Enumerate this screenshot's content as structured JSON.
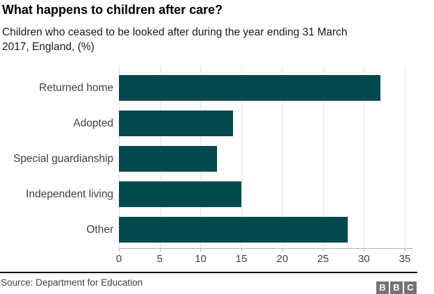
{
  "header": {
    "title": "What happens to children after care?",
    "subtitle_line1": "Children who ceased to be looked after during the year ending 31 March",
    "subtitle_line2": "2017, England, (%)"
  },
  "chart_data": {
    "type": "bar",
    "orientation": "horizontal",
    "title": "What happens to children after care?",
    "subtitle": "Children who ceased to be looked after during the year ending 31 March 2017, England, (%)",
    "categories": [
      "Returned home",
      "Adopted",
      "Special guardianship",
      "Independent living",
      "Other"
    ],
    "values": [
      32,
      14,
      12,
      15,
      28
    ],
    "unit": "%",
    "xlim": [
      0,
      35
    ],
    "xticks": [
      0,
      5,
      10,
      15,
      20,
      25,
      30,
      35
    ],
    "grid": "vertical",
    "bar_color": "#04494e",
    "gridline_color": "#e0e0e0",
    "axis_color": "#b3b3b3"
  },
  "footer": {
    "source": "Source: Department for Education",
    "logo_blocks": [
      "B",
      "B",
      "C"
    ]
  }
}
